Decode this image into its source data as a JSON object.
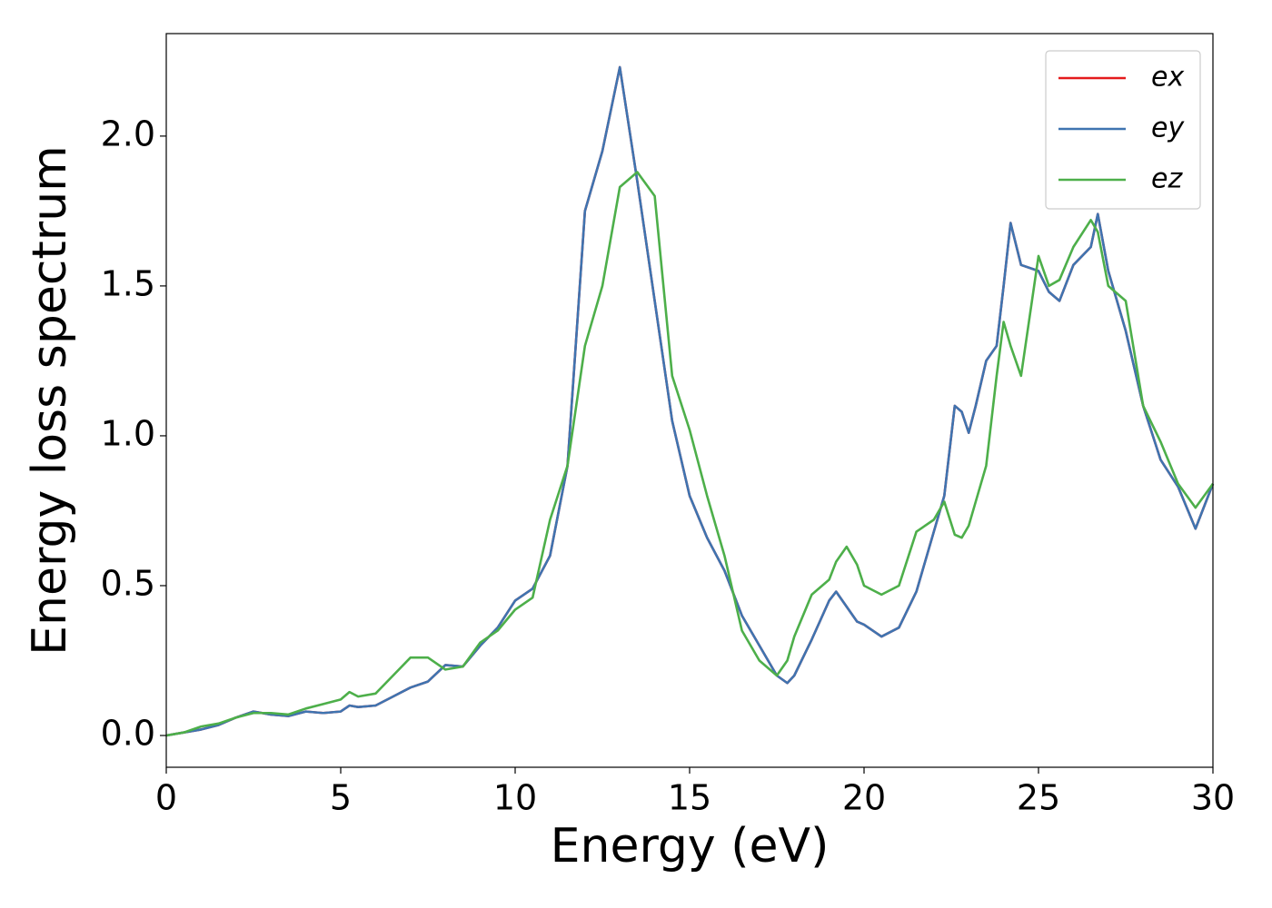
{
  "chart_data": {
    "type": "line",
    "xlabel": "Energy (eV)",
    "ylabel": "Energy loss spectrum",
    "x": [
      0,
      0.5,
      1,
      1.5,
      2,
      2.5,
      3,
      3.5,
      4,
      4.5,
      5,
      5.25,
      5.5,
      6,
      6.5,
      7,
      7.5,
      8,
      8.5,
      9,
      9.5,
      10,
      10.5,
      11,
      11.5,
      12,
      12.5,
      13,
      13.5,
      14,
      14.5,
      15,
      15.5,
      16,
      16.5,
      17,
      17.5,
      17.8,
      18,
      18.5,
      19,
      19.2,
      19.5,
      19.8,
      20,
      20.5,
      21,
      21.5,
      22,
      22.3,
      22.6,
      22.8,
      23,
      23.2,
      23.5,
      23.8,
      24,
      24.2,
      24.5,
      25,
      25.3,
      25.6,
      26,
      26.5,
      26.7,
      27,
      27.5,
      28,
      28.5,
      29,
      29.5,
      30
    ],
    "series": [
      {
        "name": "ex",
        "color": "#e41a1c",
        "values": [
          0,
          0.01,
          0.02,
          0.035,
          0.06,
          0.08,
          0.07,
          0.065,
          0.08,
          0.075,
          0.08,
          0.1,
          0.095,
          0.1,
          0.13,
          0.16,
          0.18,
          0.235,
          0.23,
          0.3,
          0.36,
          0.45,
          0.49,
          0.6,
          0.9,
          1.75,
          1.95,
          2.23,
          1.85,
          1.45,
          1.05,
          0.8,
          0.66,
          0.55,
          0.4,
          0.3,
          0.2,
          0.175,
          0.2,
          0.32,
          0.45,
          0.48,
          0.43,
          0.38,
          0.37,
          0.33,
          0.36,
          0.48,
          0.68,
          0.8,
          1.1,
          1.08,
          1.01,
          1.1,
          1.25,
          1.3,
          1.5,
          1.71,
          1.57,
          1.55,
          1.48,
          1.45,
          1.57,
          1.63,
          1.74,
          1.55,
          1.35,
          1.1,
          0.92,
          0.83,
          0.69,
          0.84
        ]
      },
      {
        "name": "ey",
        "color": "#3f74b0",
        "values": [
          0,
          0.01,
          0.02,
          0.035,
          0.06,
          0.08,
          0.07,
          0.065,
          0.08,
          0.075,
          0.08,
          0.1,
          0.095,
          0.1,
          0.13,
          0.16,
          0.18,
          0.235,
          0.23,
          0.3,
          0.36,
          0.45,
          0.49,
          0.6,
          0.9,
          1.75,
          1.95,
          2.23,
          1.85,
          1.45,
          1.05,
          0.8,
          0.66,
          0.55,
          0.4,
          0.3,
          0.2,
          0.175,
          0.2,
          0.32,
          0.45,
          0.48,
          0.43,
          0.38,
          0.37,
          0.33,
          0.36,
          0.48,
          0.68,
          0.8,
          1.1,
          1.08,
          1.01,
          1.1,
          1.25,
          1.3,
          1.5,
          1.71,
          1.57,
          1.55,
          1.48,
          1.45,
          1.57,
          1.63,
          1.74,
          1.55,
          1.35,
          1.1,
          0.92,
          0.83,
          0.69,
          0.84
        ]
      },
      {
        "name": "ez",
        "color": "#4daf4a",
        "values": [
          0,
          0.01,
          0.03,
          0.04,
          0.06,
          0.075,
          0.075,
          0.07,
          0.09,
          0.105,
          0.12,
          0.145,
          0.13,
          0.14,
          0.2,
          0.26,
          0.26,
          0.22,
          0.23,
          0.31,
          0.35,
          0.42,
          0.46,
          0.72,
          0.9,
          1.3,
          1.5,
          1.83,
          1.88,
          1.8,
          1.2,
          1.02,
          0.8,
          0.6,
          0.35,
          0.25,
          0.2,
          0.25,
          0.33,
          0.47,
          0.52,
          0.58,
          0.63,
          0.57,
          0.5,
          0.47,
          0.5,
          0.68,
          0.72,
          0.78,
          0.67,
          0.66,
          0.7,
          0.78,
          0.9,
          1.2,
          1.38,
          1.3,
          1.2,
          1.6,
          1.5,
          1.52,
          1.63,
          1.72,
          1.68,
          1.5,
          1.45,
          1.1,
          0.98,
          0.84,
          0.76,
          0.84
        ]
      }
    ],
    "xlim": [
      0,
      30
    ],
    "xticks": [
      0,
      5,
      10,
      15,
      20,
      25,
      30
    ],
    "ylim": [
      -0.106,
      2.342
    ],
    "yticks": [
      {
        "value": 0,
        "label": "0.0"
      },
      {
        "value": 0.5,
        "label": "0.5"
      },
      {
        "value": 1,
        "label": "1.0"
      },
      {
        "value": 1.5,
        "label": "1.5"
      },
      {
        "value": 2,
        "label": "2.0"
      }
    ],
    "legend": "upper right",
    "grid": false
  }
}
